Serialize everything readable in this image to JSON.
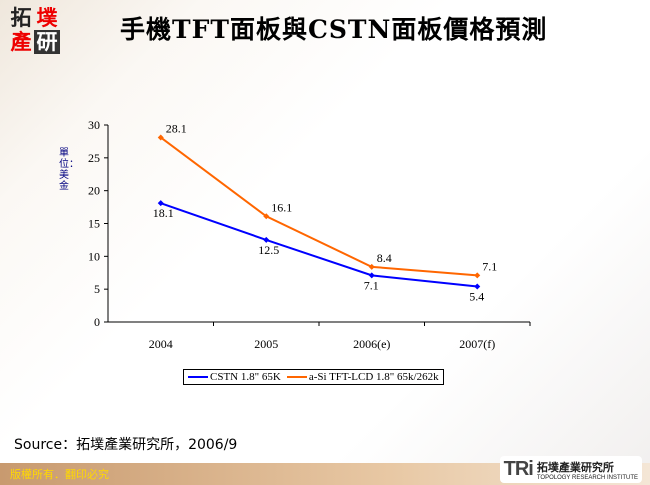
{
  "header": {
    "logo_chars": [
      "拓",
      "墣",
      "產",
      "研"
    ],
    "title": "手機TFT面板與CSTN面板價格預測"
  },
  "chart_data": {
    "type": "line",
    "title": "手機TFT面板與CSTN面板價格預測",
    "categories": [
      "2004",
      "2005",
      "2006(e)",
      "2007(f)"
    ],
    "ylabel": "單位：美金",
    "ylim": [
      0,
      30
    ],
    "yticks": [
      0,
      5,
      10,
      15,
      20,
      25,
      30
    ],
    "legend_placement": "bottom",
    "series": [
      {
        "name": "CSTN 1.8\"  65K",
        "color": "#0000ff",
        "values": [
          18.1,
          12.5,
          7.1,
          5.4
        ],
        "labels": [
          "18.1",
          "12.5",
          "7.1",
          "5.4"
        ]
      },
      {
        "name": "a-Si TFT-LCD 1.8\" 65k/262k",
        "color": "#ff6600",
        "values": [
          28.1,
          16.1,
          8.4,
          7.1
        ],
        "labels": [
          "28.1",
          "16.1",
          "8.4",
          "7.1"
        ]
      }
    ]
  },
  "source": "Source：拓墣產業研究所，2006/9",
  "footer": {
    "copyright": "版權所有．翻印必究",
    "brand": "TRi",
    "brand_cn": "拓墣產業研究所",
    "brand_en": "TOPOLOGY RESEARCH INSTITUTE"
  }
}
